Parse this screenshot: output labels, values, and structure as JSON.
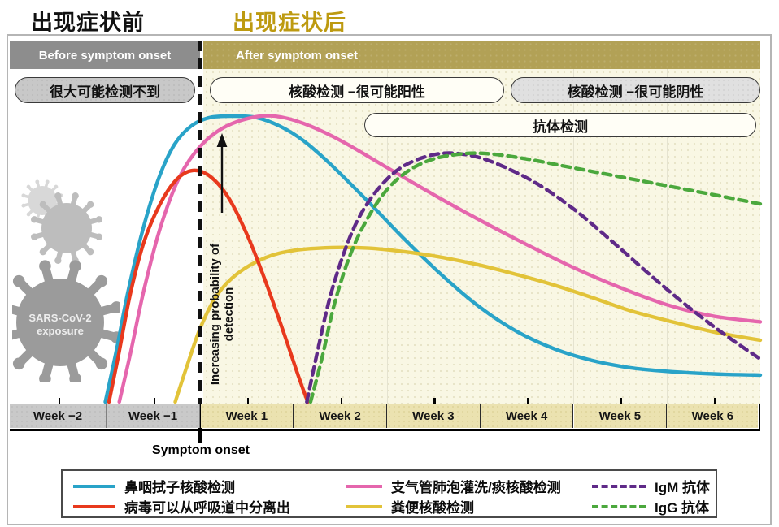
{
  "titles": {
    "before": "出现症状前",
    "after": "出现症状后",
    "after_color": "#bd9a10"
  },
  "header": {
    "before": "Before symptom onset",
    "after": "After symptom onset"
  },
  "callouts": {
    "undetectable": "很大可能检测不到",
    "pcr_positive": "核酸检测 −很可能阳性",
    "pcr_negative": "核酸检测 −很可能阴性",
    "antibody": "抗体检测"
  },
  "plot": {
    "y_axis_label": "Increasing probability of detection",
    "symptom_onset_label": "Symptom onset",
    "exposure_label_line1": "SARS-CoV-2",
    "exposure_label_line2": "exposure"
  },
  "axis": {
    "weeks": [
      {
        "label": "Week −2"
      },
      {
        "label": "Week −1"
      },
      {
        "label": "Week 1"
      },
      {
        "label": "Week 2"
      },
      {
        "label": "Week 3"
      },
      {
        "label": "Week 4"
      },
      {
        "label": "Week 5"
      },
      {
        "label": "Week 6"
      }
    ]
  },
  "legend": {
    "items": [
      {
        "label": "鼻咽拭子核酸检测",
        "color": "#29a3c8",
        "dash": "solid"
      },
      {
        "label": "病毒可以从呼吸道中分离出",
        "color": "#e8391d",
        "dash": "solid"
      },
      {
        "label": "支气管肺泡灌洗/痰核酸检测",
        "color": "#e566ad",
        "dash": "solid"
      },
      {
        "label": "粪便核酸检测",
        "color": "#e2c339",
        "dash": "solid"
      },
      {
        "label": "IgM 抗体",
        "color": "#5f2a88",
        "dash": "dashed"
      },
      {
        "label": "IgG 抗体",
        "color": "#4ba83d",
        "dash": "dashed"
      }
    ]
  },
  "chart_data": {
    "type": "line",
    "x_axis": {
      "unit": "weeks relative to symptom onset",
      "categories": [
        "Week −2",
        "Week −1",
        "Week 1",
        "Week 2",
        "Week 3",
        "Week 4",
        "Week 5",
        "Week 6"
      ],
      "range": [
        -2,
        6
      ],
      "symptom_onset_at_week": 0
    },
    "y_axis": {
      "label": "Increasing probability of detection",
      "range": [
        0,
        1
      ],
      "tick_labels": "none (qualitative probability axis)"
    },
    "grid": "faint vertical lines at week boundaries",
    "legend_position": "bottom box, 3 columns × 2 rows",
    "series": [
      {
        "id": "nasopharyngeal-pcr",
        "name": "鼻咽拭子核酸检测",
        "color": "#29a3c8",
        "style": "solid",
        "points": [
          [
            -1.02,
            0
          ],
          [
            -0.9,
            0.18
          ],
          [
            -0.78,
            0.38
          ],
          [
            -0.62,
            0.6
          ],
          [
            -0.45,
            0.78
          ],
          [
            -0.28,
            0.9
          ],
          [
            -0.1,
            0.965
          ],
          [
            0.1,
            0.995
          ],
          [
            0.35,
            1.0
          ],
          [
            0.6,
            0.995
          ],
          [
            0.85,
            0.965
          ],
          [
            1.1,
            0.915
          ],
          [
            1.4,
            0.83
          ],
          [
            1.8,
            0.7
          ],
          [
            2.2,
            0.565
          ],
          [
            2.6,
            0.44
          ],
          [
            3.0,
            0.33
          ],
          [
            3.4,
            0.245
          ],
          [
            3.8,
            0.185
          ],
          [
            4.2,
            0.145
          ],
          [
            4.6,
            0.12
          ],
          [
            5.0,
            0.107
          ],
          [
            5.5,
            0.098
          ],
          [
            6.0,
            0.094
          ]
        ]
      },
      {
        "id": "viral-isolation",
        "name": "病毒可以从呼吸道中分离出",
        "color": "#e8391d",
        "style": "solid",
        "points": [
          [
            -0.98,
            0
          ],
          [
            -0.88,
            0.16
          ],
          [
            -0.75,
            0.38
          ],
          [
            -0.6,
            0.565
          ],
          [
            -0.42,
            0.7
          ],
          [
            -0.25,
            0.78
          ],
          [
            -0.08,
            0.81
          ],
          [
            0.1,
            0.79
          ],
          [
            0.3,
            0.715
          ],
          [
            0.5,
            0.585
          ],
          [
            0.7,
            0.42
          ],
          [
            0.9,
            0.235
          ],
          [
            1.05,
            0.09
          ],
          [
            1.15,
            0
          ]
        ]
      },
      {
        "id": "bal-sputum-pcr",
        "name": "支气管肺泡灌洗/痰核酸检测",
        "color": "#e566ad",
        "style": "solid",
        "points": [
          [
            -0.87,
            0
          ],
          [
            -0.75,
            0.17
          ],
          [
            -0.6,
            0.4
          ],
          [
            -0.42,
            0.62
          ],
          [
            -0.22,
            0.79
          ],
          [
            0,
            0.895
          ],
          [
            0.25,
            0.96
          ],
          [
            0.55,
            0.995
          ],
          [
            0.8,
            1.0
          ],
          [
            1.1,
            0.975
          ],
          [
            1.5,
            0.915
          ],
          [
            2.0,
            0.82
          ],
          [
            2.5,
            0.725
          ],
          [
            3.0,
            0.635
          ],
          [
            3.5,
            0.55
          ],
          [
            4.0,
            0.47
          ],
          [
            4.5,
            0.4
          ],
          [
            5.0,
            0.34
          ],
          [
            5.5,
            0.3
          ],
          [
            6.0,
            0.28
          ]
        ]
      },
      {
        "id": "stool-pcr",
        "name": "粪便核酸检测",
        "color": "#e2c339",
        "style": "solid",
        "points": [
          [
            -0.27,
            0
          ],
          [
            -0.15,
            0.12
          ],
          [
            0,
            0.26
          ],
          [
            0.18,
            0.375
          ],
          [
            0.4,
            0.45
          ],
          [
            0.7,
            0.505
          ],
          [
            1.0,
            0.53
          ],
          [
            1.4,
            0.54
          ],
          [
            1.8,
            0.538
          ],
          [
            2.2,
            0.525
          ],
          [
            2.6,
            0.505
          ],
          [
            3.0,
            0.478
          ],
          [
            3.4,
            0.445
          ],
          [
            3.8,
            0.408
          ],
          [
            4.2,
            0.365
          ],
          [
            4.6,
            0.32
          ],
          [
            5.0,
            0.285
          ],
          [
            5.5,
            0.245
          ],
          [
            6.0,
            0.216
          ]
        ]
      },
      {
        "id": "igm-antibody",
        "name": "IgM 抗体",
        "color": "#5f2a88",
        "style": "dashed",
        "points": [
          [
            1.14,
            0
          ],
          [
            1.25,
            0.17
          ],
          [
            1.4,
            0.38
          ],
          [
            1.6,
            0.575
          ],
          [
            1.8,
            0.7
          ],
          [
            2.05,
            0.795
          ],
          [
            2.3,
            0.845
          ],
          [
            2.6,
            0.87
          ],
          [
            2.9,
            0.862
          ],
          [
            3.2,
            0.83
          ],
          [
            3.6,
            0.765
          ],
          [
            4.0,
            0.675
          ],
          [
            4.4,
            0.565
          ],
          [
            4.8,
            0.45
          ],
          [
            5.2,
            0.34
          ],
          [
            5.6,
            0.24
          ],
          [
            6.0,
            0.15
          ]
        ]
      },
      {
        "id": "igg-antibody",
        "name": "IgG 抗体",
        "color": "#4ba83d",
        "style": "dashed",
        "points": [
          [
            1.18,
            0
          ],
          [
            1.3,
            0.15
          ],
          [
            1.45,
            0.36
          ],
          [
            1.65,
            0.55
          ],
          [
            1.9,
            0.7
          ],
          [
            2.15,
            0.79
          ],
          [
            2.45,
            0.845
          ],
          [
            2.8,
            0.868
          ],
          [
            3.1,
            0.868
          ],
          [
            3.5,
            0.85
          ],
          [
            3.9,
            0.825
          ],
          [
            4.3,
            0.8
          ],
          [
            4.7,
            0.775
          ],
          [
            5.1,
            0.75
          ],
          [
            5.5,
            0.725
          ],
          [
            6.0,
            0.693
          ]
        ]
      }
    ]
  }
}
